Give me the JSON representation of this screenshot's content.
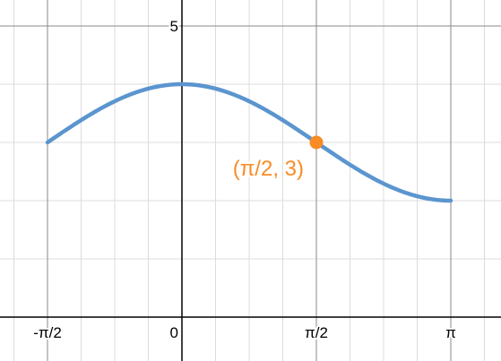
{
  "chart_data": {
    "type": "line",
    "title": "",
    "xlabel": "",
    "ylabel": "",
    "xlim": [
      -2.0,
      3.5
    ],
    "ylim": [
      -0.75,
      5.45
    ],
    "grid": true,
    "x_ticks": [
      {
        "value": -1.5708,
        "label": "-π/2"
      },
      {
        "value": 0,
        "label": "0"
      },
      {
        "value": 1.5708,
        "label": "π/2"
      },
      {
        "value": 3.1416,
        "label": "π"
      }
    ],
    "y_ticks": [
      {
        "value": 5,
        "label": "5"
      }
    ],
    "series": [
      {
        "function": "cos(x) + 3",
        "x": [
          -1.5708,
          -1.1781,
          -0.7854,
          -0.3927,
          0,
          0.3927,
          0.7854,
          1.1781,
          1.5708,
          1.9635,
          2.3562,
          2.7489,
          3.1416
        ],
        "y": [
          3.0,
          3.383,
          3.707,
          3.924,
          4.0,
          3.924,
          3.707,
          3.383,
          3.0,
          2.617,
          2.293,
          2.076,
          2.0
        ],
        "color": "#5b95cf"
      }
    ],
    "annotations": [
      {
        "x": 1.5708,
        "y": 3,
        "label": "(π/2, 3)",
        "color": "#f98b24"
      }
    ]
  }
}
